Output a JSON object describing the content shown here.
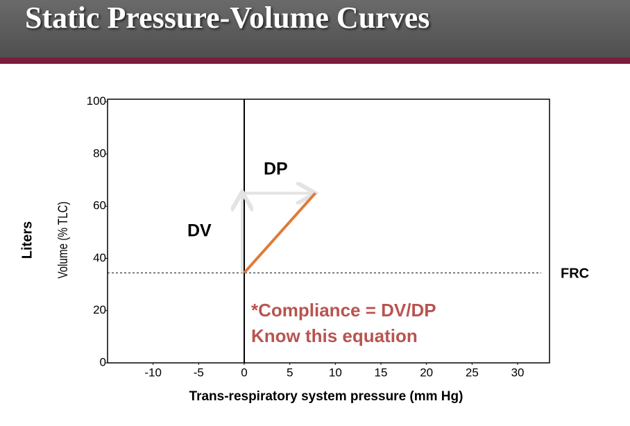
{
  "header": {
    "title": "Static Pressure-Volume Curves"
  },
  "chart_data": {
    "type": "line",
    "x_label": "Trans-respiratory system pressure (mm Hg)",
    "y_label": "Volume (% TLC)",
    "y_outer_label": "Liters",
    "x": [
      0,
      7.8
    ],
    "values": [
      34.5,
      65
    ],
    "color": "#e07b39",
    "xlim": [
      -15,
      33.5
    ],
    "xticks": [
      -10,
      -5,
      0,
      5,
      10,
      15,
      20,
      25,
      30
    ],
    "ylim": [
      0,
      101
    ],
    "yticks": [
      0,
      20,
      40,
      60,
      80,
      100
    ],
    "reference_line": {
      "value": 34.5,
      "label": "FRC"
    },
    "annotations": {
      "dv": "DV",
      "dp": "DP",
      "note": [
        "*Compliance = DV/DP",
        "Know this equation"
      ]
    }
  }
}
